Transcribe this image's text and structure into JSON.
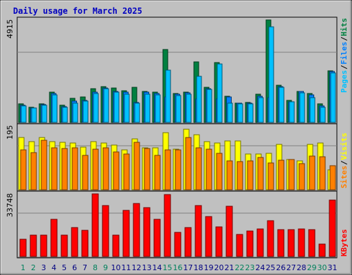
{
  "title": "Daily usage for March 2025",
  "colors": {
    "background": "#C0C0C0",
    "title": "#0000C0",
    "hits": "#008040",
    "files": "#0080FF",
    "pages": "#00C0FF",
    "visits": "#FFFF00",
    "sites": "#FF8000",
    "kbytes": "#FF0000",
    "weekend_label": "#00805C",
    "weekday_label": "#000080"
  },
  "chart_data": [
    {
      "type": "bar",
      "title": "Daily usage for March 2025",
      "panel": "top",
      "categories": [
        "1",
        "2",
        "3",
        "4",
        "5",
        "6",
        "7",
        "8",
        "9",
        "10",
        "11",
        "12",
        "13",
        "14",
        "15",
        "16",
        "17",
        "18",
        "19",
        "20",
        "21",
        "22",
        "23",
        "24",
        "25",
        "26",
        "27",
        "28",
        "29",
        "30",
        "31"
      ],
      "weekend_days": [
        "1",
        "2",
        "8",
        "9",
        "15",
        "16",
        "22",
        "23",
        "29",
        "30"
      ],
      "ymax_label": "4915",
      "ylim": [
        0,
        4915
      ],
      "grid": true,
      "series": [
        {
          "name": "Hits",
          "values": [
            870,
            720,
            880,
            1410,
            810,
            1120,
            1200,
            1600,
            1690,
            1610,
            1480,
            1640,
            1440,
            1430,
            3440,
            1350,
            1420,
            2860,
            1660,
            2800,
            1230,
            910,
            940,
            1320,
            4830,
            1740,
            1030,
            1470,
            1350,
            860,
            2430
          ]
        },
        {
          "name": "Files",
          "values": [
            820,
            680,
            830,
            1350,
            740,
            1010,
            1050,
            1420,
            1630,
            1460,
            1430,
            940,
            1410,
            1370,
            1190,
            1310,
            1380,
            1090,
            1600,
            1100,
            1190,
            890,
            900,
            1230,
            1150,
            1690,
            980,
            1440,
            1300,
            760,
            2380
          ]
        },
        {
          "name": "Pages",
          "values": [
            790,
            670,
            800,
            1290,
            710,
            890,
            990,
            1360,
            1570,
            1420,
            1340,
            890,
            1310,
            1290,
            2460,
            1250,
            1330,
            2180,
            1550,
            2750,
            890,
            860,
            880,
            1170,
            4510,
            1650,
            960,
            1380,
            1170,
            700,
            2340
          ]
        }
      ]
    },
    {
      "type": "bar",
      "panel": "middle",
      "categories": [
        "1",
        "2",
        "3",
        "4",
        "5",
        "6",
        "7",
        "8",
        "9",
        "10",
        "11",
        "12",
        "13",
        "14",
        "15",
        "16",
        "17",
        "18",
        "19",
        "20",
        "21",
        "22",
        "23",
        "24",
        "25",
        "26",
        "27",
        "28",
        "29",
        "30",
        "31"
      ],
      "ymax_label": "195",
      "ylim": [
        0,
        195
      ],
      "grid": true,
      "series": [
        {
          "name": "Visits",
          "values": [
            157,
            143,
            157,
            143,
            141,
            139,
            127,
            143,
            139,
            133,
            119,
            152,
            126,
            126,
            171,
            121,
            181,
            164,
            143,
            140,
            145,
            145,
            107,
            107,
            108,
            136,
            91,
            86,
            135,
            140,
            60
          ]
        },
        {
          "name": "Sites",
          "values": [
            119,
            110,
            147,
            125,
            123,
            125,
            102,
            122,
            125,
            113,
            106,
            141,
            124,
            103,
            119,
            119,
            157,
            126,
            121,
            109,
            86,
            85,
            86,
            96,
            80,
            88,
            90,
            78,
            101,
            99,
            72
          ]
        }
      ]
    },
    {
      "type": "bar",
      "panel": "bottom",
      "categories": [
        "1",
        "2",
        "3",
        "4",
        "5",
        "6",
        "7",
        "8",
        "9",
        "10",
        "11",
        "12",
        "13",
        "14",
        "15",
        "16",
        "17",
        "18",
        "19",
        "20",
        "21",
        "22",
        "23",
        "24",
        "25",
        "26",
        "27",
        "28",
        "29",
        "30",
        "31"
      ],
      "ymax_label": "33748",
      "ylim": [
        0,
        33748
      ],
      "grid": true,
      "series": [
        {
          "name": "KBytes",
          "values": [
            9100,
            11200,
            11100,
            19500,
            11000,
            15100,
            13500,
            32500,
            26500,
            11200,
            24200,
            27800,
            25600,
            19500,
            32200,
            12400,
            15100,
            26700,
            21000,
            15400,
            26200,
            11500,
            13200,
            14300,
            18800,
            14100,
            14100,
            14200,
            14000,
            6300,
            29600
          ]
        }
      ]
    }
  ]
}
